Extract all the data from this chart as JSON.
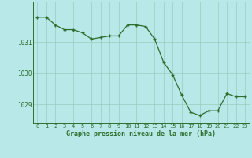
{
  "x": [
    0,
    1,
    2,
    3,
    4,
    5,
    6,
    7,
    8,
    9,
    10,
    11,
    12,
    13,
    14,
    15,
    16,
    17,
    18,
    19,
    20,
    21,
    22,
    23
  ],
  "y": [
    1031.8,
    1031.8,
    1031.55,
    1031.4,
    1031.4,
    1031.3,
    1031.1,
    1031.15,
    1031.2,
    1031.2,
    1031.55,
    1031.55,
    1031.5,
    1031.1,
    1030.35,
    1029.95,
    1029.3,
    1028.75,
    1028.65,
    1028.8,
    1028.8,
    1029.35,
    1029.25,
    1029.25
  ],
  "line_color": "#2d6e2d",
  "marker_color": "#2d6e2d",
  "bg_color": "#b8e8e8",
  "grid_color": "#99ccbb",
  "xlabel": "Graphe pression niveau de la mer (hPa)",
  "xlabel_color": "#2d6e2d",
  "tick_color": "#2d6e2d",
  "axis_color": "#2d6e2d",
  "ylim_min": 1028.4,
  "ylim_max": 1032.3,
  "yticks": [
    1029,
    1030,
    1031
  ],
  "xticks": [
    0,
    1,
    2,
    3,
    4,
    5,
    6,
    7,
    8,
    9,
    10,
    11,
    12,
    13,
    14,
    15,
    16,
    17,
    18,
    19,
    20,
    21,
    22,
    23
  ],
  "figsize": [
    3.2,
    2.0
  ],
  "dpi": 100
}
